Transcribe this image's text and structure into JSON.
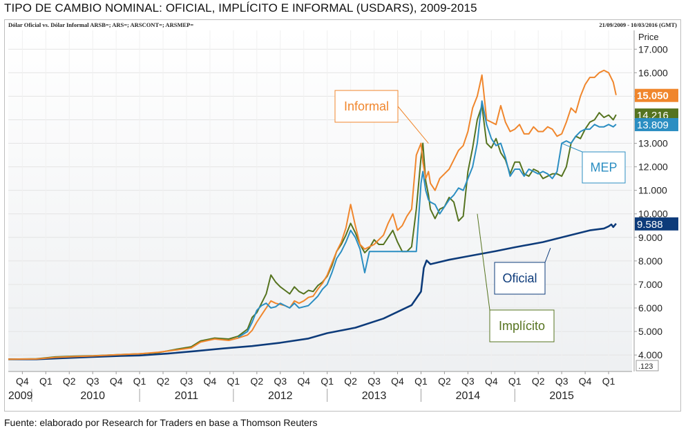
{
  "title": "TIPO DE CAMBIO NOMINAL: OFICIAL, IMPLÍCITO E INFORMAL (USDARS), 2009-2015",
  "subtitle_left": "Dólar Oficial vs. Dólar Informal ARSB=; ARS=; ARSCONT=; ARSMEP=",
  "subtitle_right": "21/09/2009 - 10/03/2016 (GMT)",
  "source": "Fuente: elaborado por Research for Traders en base a Thomson Reuters",
  "colors": {
    "oficial": "#0d3b7a",
    "implicito": "#55731f",
    "informal": "#f0862c",
    "mep": "#2b8ec2"
  },
  "chart_data": {
    "type": "line",
    "title": "TIPO DE CAMBIO NOMINAL: OFICIAL, IMPLÍCITO E INFORMAL (USDARS), 2009-2015",
    "ylabel": "Price",
    "ylim": [
      3.3,
      17.8
    ],
    "y_ticks": [
      "4.000",
      "5.000",
      "6.000",
      "7.000",
      "8.000",
      "9.000",
      "10.000",
      "11.000",
      "12.000",
      "13.000",
      "14.000",
      "15.000",
      "16.000",
      "17.000"
    ],
    "y_tick_values": [
      4,
      5,
      6,
      7,
      8,
      9,
      10,
      11,
      12,
      13,
      14,
      15,
      16,
      17
    ],
    "scale_label": ".123",
    "xlim": [
      2009.6,
      2016.25
    ],
    "quarter_ticks": [
      "Q4",
      "Q1",
      "Q2",
      "Q3",
      "Q4",
      "Q1",
      "Q2",
      "Q3",
      "Q4",
      "Q1",
      "Q2",
      "Q3",
      "Q4",
      "Q1",
      "Q2",
      "Q3",
      "Q4",
      "Q1",
      "Q2",
      "Q3",
      "Q4",
      "Q1",
      "Q2",
      "Q3",
      "Q4",
      "Q1"
    ],
    "quarter_positions": [
      2009.75,
      2010.0,
      2010.25,
      2010.5,
      2010.75,
      2011.0,
      2011.25,
      2011.5,
      2011.75,
      2012.0,
      2012.25,
      2012.5,
      2012.75,
      2013.0,
      2013.25,
      2013.5,
      2013.75,
      2014.0,
      2014.25,
      2014.5,
      2014.75,
      2015.0,
      2015.25,
      2015.5,
      2015.75,
      2016.0
    ],
    "years": [
      "2009",
      "2010",
      "2011",
      "2012",
      "2013",
      "2014",
      "2015"
    ],
    "year_positions": [
      2009.73,
      2010.5,
      2011.5,
      2012.5,
      2013.5,
      2014.5,
      2015.5
    ],
    "year_separators": [
      2009.85,
      2011.0,
      2012.0,
      2013.0,
      2014.0,
      2015.0
    ],
    "series": [
      {
        "name": "Oficial",
        "key": "oficial",
        "last": "9.588",
        "last_value": 9.588,
        "x": [
          2009.6,
          2009.9,
          2010.2,
          2010.5,
          2010.8,
          2011.0,
          2011.3,
          2011.6,
          2011.9,
          2012.2,
          2012.5,
          2012.8,
          2013.0,
          2013.3,
          2013.6,
          2013.9,
          2014.0,
          2014.03,
          2014.06,
          2014.1,
          2014.3,
          2014.5,
          2014.8,
          2015.0,
          2015.3,
          2015.6,
          2015.8,
          2015.95,
          2016.0,
          2016.03,
          2016.05,
          2016.08
        ],
        "y": [
          3.82,
          3.82,
          3.87,
          3.92,
          3.96,
          3.98,
          4.06,
          4.17,
          4.28,
          4.38,
          4.52,
          4.7,
          4.93,
          5.16,
          5.55,
          6.12,
          6.7,
          7.7,
          8.02,
          7.86,
          8.05,
          8.2,
          8.42,
          8.58,
          8.8,
          9.1,
          9.3,
          9.38,
          9.47,
          9.55,
          9.44,
          9.588
        ]
      },
      {
        "name": "Implícito",
        "key": "implicito",
        "last": "14.216",
        "last_value": 14.216,
        "x": [
          2009.6,
          2009.9,
          2010.1,
          2010.3,
          2010.5,
          2010.8,
          2011.0,
          2011.2,
          2011.4,
          2011.55,
          2011.65,
          2011.8,
          2011.95,
          2012.05,
          2012.15,
          2012.2,
          2012.25,
          2012.3,
          2012.35,
          2012.4,
          2012.45,
          2012.5,
          2012.55,
          2012.6,
          2012.65,
          2012.7,
          2012.75,
          2012.8,
          2012.85,
          2012.9,
          2012.95,
          2013.0,
          2013.05,
          2013.1,
          2013.15,
          2013.2,
          2013.25,
          2013.3,
          2013.35,
          2013.4,
          2013.45,
          2013.5,
          2013.55,
          2013.6,
          2013.65,
          2013.7,
          2013.75,
          2013.8,
          2013.85,
          2013.9,
          2013.95,
          2014.0,
          2014.02,
          2014.05,
          2014.08,
          2014.1,
          2014.15,
          2014.2,
          2014.25,
          2014.3,
          2014.35,
          2014.4,
          2014.45,
          2014.5,
          2014.55,
          2014.6,
          2014.65,
          2014.7,
          2014.75,
          2014.8,
          2014.85,
          2014.9,
          2014.95,
          2015.0,
          2015.05,
          2015.1,
          2015.15,
          2015.2,
          2015.25,
          2015.3,
          2015.35,
          2015.4,
          2015.45,
          2015.5,
          2015.55,
          2015.6,
          2015.65,
          2015.7,
          2015.75,
          2015.8,
          2015.85,
          2015.9,
          2015.95,
          2016.0,
          2016.05,
          2016.08
        ],
        "y": [
          3.82,
          3.84,
          3.92,
          3.95,
          3.97,
          4.02,
          4.05,
          4.1,
          4.25,
          4.35,
          4.6,
          4.72,
          4.68,
          4.8,
          5.1,
          5.6,
          5.8,
          6.2,
          6.6,
          7.4,
          7.1,
          6.9,
          6.75,
          6.6,
          6.9,
          6.7,
          6.6,
          6.75,
          6.7,
          6.95,
          7.1,
          7.35,
          7.8,
          8.4,
          8.7,
          9.1,
          9.6,
          9.2,
          8.7,
          8.35,
          8.55,
          8.9,
          8.7,
          8.7,
          9.0,
          9.3,
          8.8,
          8.4,
          8.4,
          8.6,
          10.2,
          12.4,
          13.0,
          11.4,
          10.8,
          10.2,
          9.8,
          10.2,
          10.3,
          10.7,
          10.5,
          9.7,
          9.9,
          11.8,
          12.8,
          14.0,
          14.6,
          13.0,
          12.8,
          13.2,
          12.6,
          12.3,
          11.7,
          12.2,
          12.2,
          11.7,
          11.6,
          11.9,
          11.8,
          11.5,
          11.6,
          11.7,
          11.7,
          11.6,
          12.0,
          13.0,
          13.3,
          13.2,
          13.6,
          13.9,
          14.0,
          14.3,
          14.1,
          14.2,
          14.0,
          14.216
        ]
      },
      {
        "name": "Informal",
        "key": "informal",
        "last": "15.050",
        "last_value": 15.05,
        "x": [
          2009.6,
          2009.9,
          2010.1,
          2010.3,
          2010.5,
          2010.8,
          2011.0,
          2011.2,
          2011.4,
          2011.55,
          2011.65,
          2011.8,
          2011.95,
          2012.05,
          2012.15,
          2012.2,
          2012.25,
          2012.3,
          2012.35,
          2012.4,
          2012.45,
          2012.5,
          2012.55,
          2012.6,
          2012.65,
          2012.7,
          2012.75,
          2012.8,
          2012.85,
          2012.9,
          2012.95,
          2013.0,
          2013.05,
          2013.1,
          2013.15,
          2013.2,
          2013.25,
          2013.3,
          2013.35,
          2013.4,
          2013.45,
          2013.5,
          2013.55,
          2013.6,
          2013.65,
          2013.7,
          2013.75,
          2013.8,
          2013.85,
          2013.9,
          2013.95,
          2014.0,
          2014.02,
          2014.05,
          2014.08,
          2014.1,
          2014.15,
          2014.2,
          2014.25,
          2014.3,
          2014.35,
          2014.4,
          2014.45,
          2014.5,
          2014.55,
          2014.6,
          2014.65,
          2014.7,
          2014.75,
          2014.8,
          2014.85,
          2014.9,
          2014.95,
          2015.0,
          2015.05,
          2015.1,
          2015.15,
          2015.2,
          2015.25,
          2015.3,
          2015.35,
          2015.4,
          2015.45,
          2015.5,
          2015.55,
          2015.6,
          2015.65,
          2015.7,
          2015.75,
          2015.8,
          2015.85,
          2015.9,
          2015.95,
          2016.0,
          2016.05,
          2016.08
        ],
        "y": [
          3.82,
          3.83,
          3.9,
          3.93,
          3.96,
          4.02,
          4.05,
          4.12,
          4.22,
          4.3,
          4.55,
          4.68,
          4.62,
          4.72,
          4.85,
          5.05,
          5.4,
          5.7,
          6.0,
          6.3,
          6.2,
          6.15,
          6.1,
          6.0,
          6.3,
          6.2,
          6.3,
          6.45,
          6.5,
          6.8,
          7.05,
          7.4,
          7.9,
          8.4,
          8.8,
          9.4,
          10.4,
          9.5,
          8.7,
          8.5,
          8.6,
          8.7,
          8.9,
          9.1,
          9.6,
          10.0,
          9.3,
          9.5,
          9.9,
          10.2,
          12.5,
          13.0,
          12.2,
          11.5,
          11.8,
          11.3,
          11.0,
          11.5,
          11.7,
          11.9,
          12.3,
          12.7,
          12.9,
          13.5,
          14.5,
          15.0,
          15.9,
          14.0,
          13.9,
          13.8,
          14.6,
          13.9,
          13.5,
          13.6,
          13.8,
          13.4,
          13.4,
          13.7,
          13.5,
          13.5,
          13.7,
          13.6,
          13.3,
          13.4,
          13.9,
          14.5,
          14.3,
          15.0,
          15.5,
          15.8,
          15.8,
          16.0,
          16.1,
          16.0,
          15.6,
          15.05
        ]
      },
      {
        "name": "MEP",
        "key": "mep",
        "last": "13.809",
        "last_value": 13.809,
        "x": [
          2012.05,
          2012.15,
          2012.2,
          2012.25,
          2012.3,
          2012.35,
          2012.4,
          2012.45,
          2012.5,
          2012.55,
          2012.6,
          2012.65,
          2012.7,
          2012.75,
          2012.8,
          2012.85,
          2012.9,
          2012.95,
          2013.0,
          2013.05,
          2013.1,
          2013.15,
          2013.2,
          2013.25,
          2013.3,
          2013.35,
          2013.4,
          2013.45,
          2013.5,
          2013.55,
          2013.6,
          2013.65,
          2013.7,
          2013.75,
          2013.8,
          2013.85,
          2013.9,
          2013.95,
          2014.0,
          2014.02,
          2014.05,
          2014.08,
          2014.1,
          2014.15,
          2014.2,
          2014.25,
          2014.3,
          2014.35,
          2014.4,
          2014.45,
          2014.5,
          2014.55,
          2014.6,
          2014.65,
          2014.7,
          2014.75,
          2014.8,
          2014.85,
          2014.9,
          2014.95,
          2015.0,
          2015.05,
          2015.1,
          2015.15,
          2015.2,
          2015.25,
          2015.3,
          2015.35,
          2015.4,
          2015.45,
          2015.5,
          2015.55,
          2015.6,
          2015.65,
          2015.7,
          2015.75,
          2015.8,
          2015.85,
          2015.9,
          2015.95,
          2016.0,
          2016.05,
          2016.08
        ],
        "y": [
          4.75,
          5.0,
          5.4,
          5.9,
          6.1,
          6.2,
          6.0,
          6.05,
          6.2,
          6.1,
          6.0,
          6.2,
          6.0,
          6.05,
          6.1,
          6.3,
          6.5,
          6.8,
          7.0,
          7.5,
          8.1,
          8.4,
          8.8,
          9.3,
          9.0,
          8.5,
          7.5,
          8.4,
          8.4,
          8.4,
          8.4,
          8.4,
          8.4,
          8.4,
          8.4,
          8.4,
          8.4,
          8.4,
          11.3,
          11.8,
          11.0,
          10.6,
          10.5,
          10.4,
          10.0,
          10.3,
          10.6,
          10.8,
          11.1,
          11.0,
          11.5,
          12.0,
          13.0,
          14.8,
          13.8,
          13.2,
          12.9,
          13.0,
          12.4,
          11.6,
          11.9,
          11.9,
          11.6,
          11.9,
          11.8,
          11.7,
          11.8,
          11.7,
          11.5,
          11.8,
          13.0,
          13.1,
          13.0,
          13.3,
          13.5,
          13.6,
          13.6,
          13.8,
          13.7,
          13.7,
          13.8,
          13.7,
          13.809
        ]
      }
    ],
    "annotations": [
      {
        "key": "informal",
        "text": "Informal",
        "at": [
          2014.08,
          13.0
        ]
      },
      {
        "key": "mep",
        "text": "MEP",
        "at": [
          2015.5,
          13.0
        ]
      },
      {
        "key": "oficial",
        "text": "Oficial",
        "at": [
          2015.38,
          8.55
        ]
      },
      {
        "key": "implicito",
        "text": "Implícito",
        "at": [
          2014.6,
          10.0
        ]
      }
    ]
  }
}
